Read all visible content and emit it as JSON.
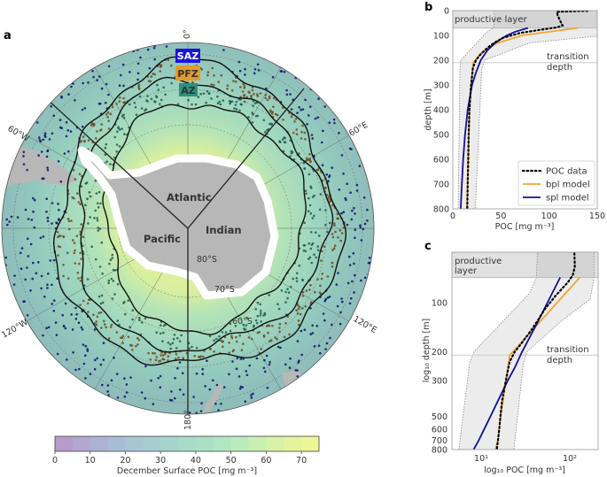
{
  "panels": {
    "a": "a",
    "b": "b",
    "c": "c"
  },
  "map": {
    "meridian_labels": {
      "top": "0°",
      "upper_left": "60°W",
      "upper_right": "60°E",
      "lower_left": "120°W",
      "lower_right": "120°E",
      "bottom": "180°"
    },
    "latitude_labels": [
      "80°S",
      "70°S",
      "60°S"
    ],
    "zones": [
      {
        "label": "SAZ",
        "color": "#1a12e0",
        "text_color": "#ffffff"
      },
      {
        "label": "PFZ",
        "color": "#e39a2e",
        "text_color": "#333333"
      },
      {
        "label": "AZ",
        "color": "#2e8f7e",
        "text_color": "#333333"
      }
    ],
    "basins": {
      "atlantic": "Atlantic",
      "pacific": "Pacific",
      "indian": "Indian"
    },
    "point_colors": {
      "saz": "#0b0f6b",
      "pfz": "#6b4a1e",
      "az": "#1f5a4c"
    },
    "colorbar": {
      "label": "December Surface POC [mg m⁻³]",
      "range": [
        0,
        75
      ],
      "ticks": [
        "0",
        "10",
        "20",
        "30",
        "40",
        "50",
        "60",
        "70"
      ],
      "colors": [
        "#b79bcb",
        "#b3a6cf",
        "#adb1d3",
        "#a9bcd5",
        "#a7c5d3",
        "#a6cdd0",
        "#a6d4cc",
        "#a8dbc8",
        "#abe0c5",
        "#b1e6c2",
        "#bbebbd",
        "#c9efb3",
        "#d8f2a8",
        "#e5f39e",
        "#eef596"
      ]
    }
  },
  "chart_data": [
    {
      "panel": "b",
      "type": "line",
      "xlabel": "POC [mg m⁻³]",
      "ylabel": "depth [m]",
      "xlim": [
        0,
        150
      ],
      "ylim": [
        800,
        0
      ],
      "xticks": [
        "0",
        "50",
        "100",
        "150"
      ],
      "yticks": [
        "0",
        "100",
        "200",
        "300",
        "400",
        "500",
        "600",
        "700",
        "800"
      ],
      "annotations": {
        "productive_layer": "productive layer",
        "transition_depth_line1": "transition",
        "transition_depth_line2": "depth"
      },
      "productive_layer_depth": 70,
      "transition_depth": 210,
      "legend": {
        "position": "lower-right",
        "entries": [
          "POC data",
          "bpl model",
          "spl model"
        ]
      },
      "colors": {
        "poc": "#000000",
        "bpl": "#f0a530",
        "spl": "#10109a",
        "band": "#ececec"
      }
    },
    {
      "panel": "c",
      "type": "line",
      "xlabel": "log₁₀ POC [mg m⁻³]",
      "ylabel": "log₁₀ depth [m]",
      "xscale": "log",
      "yscale": "log",
      "xlim": [
        4.7,
        209
      ],
      "ylim": [
        800,
        49
      ],
      "xticks": [
        "10¹",
        "10²"
      ],
      "yticks": [
        "100",
        "200",
        "300",
        "500",
        "600",
        "700",
        "800"
      ],
      "annotations": {
        "productive_layer_line1": "productive",
        "productive_layer_line2": "layer",
        "transition_depth_line1": "transition",
        "transition_depth_line2": "depth"
      },
      "productive_layer_depth": 70,
      "transition_depth": 210
    }
  ],
  "profiles": {
    "poc_data": [
      [
        1,
        140
      ],
      [
        3,
        122
      ],
      [
        5,
        108
      ],
      [
        20,
        109
      ],
      [
        45,
        112
      ],
      [
        60,
        114
      ],
      [
        68,
        108
      ],
      [
        75,
        95
      ],
      [
        90,
        70
      ],
      [
        110,
        52
      ],
      [
        130,
        43
      ],
      [
        150,
        36
      ],
      [
        180,
        28
      ],
      [
        200,
        24
      ],
      [
        230,
        21
      ],
      [
        300,
        19
      ],
      [
        400,
        17.2
      ],
      [
        500,
        16.5
      ],
      [
        600,
        16
      ],
      [
        700,
        15.5
      ],
      [
        800,
        15
      ]
    ],
    "bpl_model": [
      [
        70,
        130
      ],
      [
        100,
        72
      ],
      [
        133,
        45
      ],
      [
        170,
        30
      ],
      [
        210,
        21
      ],
      [
        300,
        19
      ],
      [
        400,
        17.6
      ],
      [
        500,
        16.6
      ],
      [
        600,
        15.9
      ],
      [
        700,
        15.4
      ],
      [
        800,
        14.5
      ]
    ],
    "spl_model": [
      [
        70,
        78
      ],
      [
        85,
        65
      ],
      [
        100,
        56
      ],
      [
        130,
        44
      ],
      [
        160,
        36
      ],
      [
        200,
        29
      ],
      [
        250,
        24
      ],
      [
        300,
        20
      ],
      [
        400,
        15.5
      ],
      [
        500,
        12.7
      ],
      [
        600,
        10.8
      ],
      [
        700,
        9.4
      ],
      [
        800,
        8.2
      ]
    ],
    "band_lower": [
      [
        0,
        43
      ],
      [
        50,
        43
      ],
      [
        70,
        42
      ],
      [
        88,
        35
      ],
      [
        200,
        8.3
      ],
      [
        235,
        7.4
      ],
      [
        800,
        5.6
      ]
    ],
    "band_upper": [
      [
        0,
        190
      ],
      [
        70,
        188
      ],
      [
        95,
        170
      ],
      [
        130,
        80
      ],
      [
        200,
        33
      ],
      [
        235,
        30
      ],
      [
        800,
        23.4
      ]
    ]
  }
}
